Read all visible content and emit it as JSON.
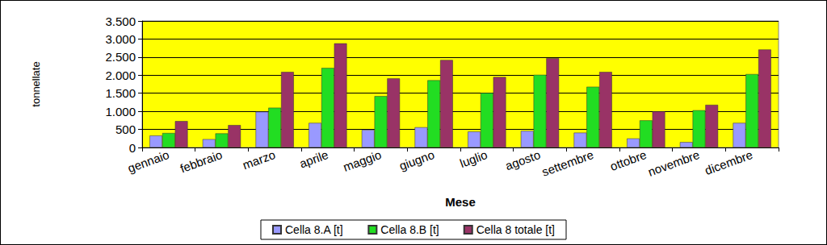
{
  "chart_data": {
    "type": "bar",
    "x_label": "Mese",
    "y_label": "tonnellate",
    "categories": [
      "gennaio",
      "febbraio",
      "marzo",
      "aprile",
      "maggio",
      "giugno",
      "luglio",
      "agosto",
      "settembre",
      "ottobre",
      "novembre",
      "dicembre"
    ],
    "series": [
      {
        "name": "Cella 8.A [t]",
        "color": "#9999ff",
        "values": [
          330,
          230,
          990,
          680,
          490,
          560,
          440,
          460,
          410,
          250,
          150,
          680
        ]
      },
      {
        "name": "Cella 8.B [t]",
        "color": "#22dd22",
        "values": [
          400,
          390,
          1100,
          2200,
          1420,
          1860,
          1510,
          2010,
          1680,
          750,
          1030,
          2030
        ]
      },
      {
        "name": "Cella 8 totale [t]",
        "color": "#993366",
        "values": [
          730,
          620,
          2090,
          2880,
          1910,
          2420,
          1950,
          2470,
          2090,
          1000,
          1180,
          2710
        ]
      }
    ],
    "ylim": [
      0,
      3500
    ],
    "yticks": [
      0,
      {
        "value": 500,
        "label": "500"
      },
      {
        "value": 1000,
        "label": "1.000"
      },
      {
        "value": 1500,
        "label": "1.500"
      },
      {
        "value": 2000,
        "label": "2.000"
      },
      {
        "value": 2500,
        "label": "2.500"
      },
      {
        "value": 3000,
        "label": "3.000"
      },
      {
        "value": 3500,
        "label": "3.500"
      }
    ],
    "grid": true,
    "legend": "bottom"
  }
}
